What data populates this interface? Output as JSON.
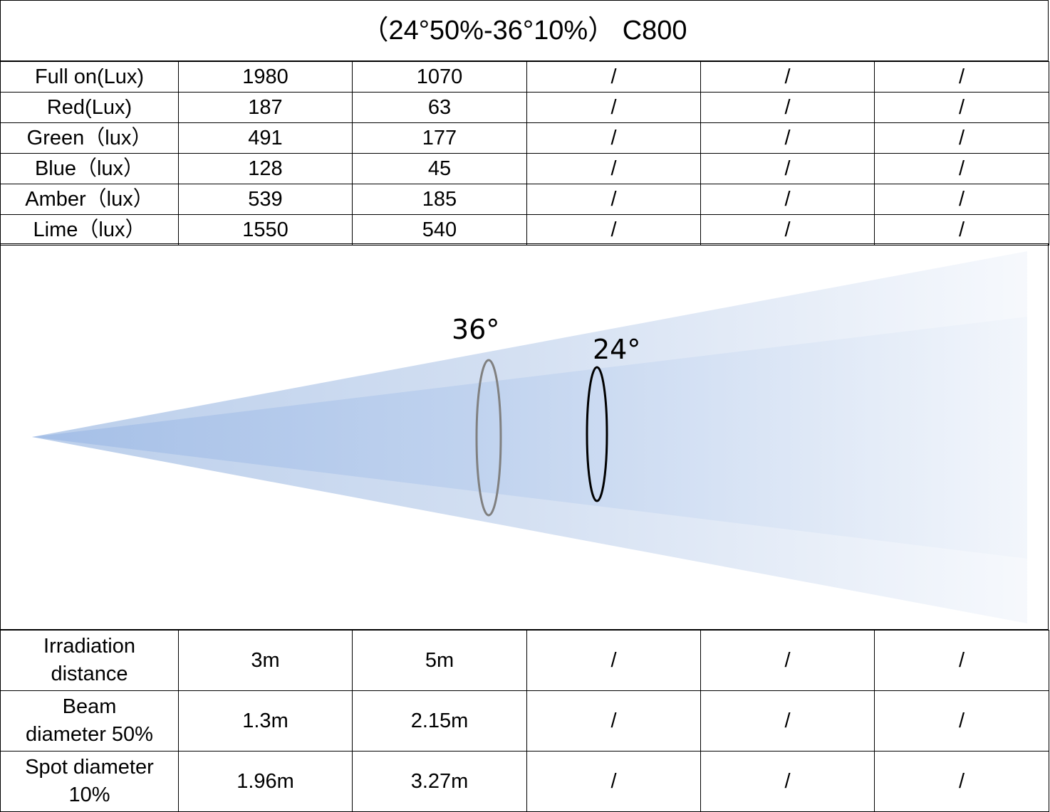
{
  "title": "（24°50%-36°10%） C800",
  "table": {
    "rows": [
      [
        "Full on(Lux)",
        "1980",
        "1070",
        "/",
        "/",
        "/"
      ],
      [
        "Red(Lux)",
        "187",
        "63",
        "/",
        "/",
        "/"
      ],
      [
        "Green（lux）",
        "491",
        "177",
        "/",
        "/",
        "/"
      ],
      [
        "Blue（lux）",
        "128",
        "45",
        "/",
        "/",
        "/"
      ],
      [
        "Amber（lux）",
        "539",
        "185",
        "/",
        "/",
        "/"
      ],
      [
        "Lime（lux）",
        "1550",
        "540",
        "/",
        "/",
        "/"
      ]
    ]
  },
  "diagram": {
    "outer_label": "36°",
    "inner_label": "24°"
  },
  "bottom_table": {
    "rows": [
      [
        [
          "Irradiation",
          "distance"
        ],
        "3m",
        "5m",
        "/",
        "/",
        "/"
      ],
      [
        [
          "Beam",
          "diameter 50%"
        ],
        "1.3m",
        "2.15m",
        "/",
        "/",
        "/"
      ],
      [
        [
          "Spot diameter",
          "10%"
        ],
        "1.96m",
        "3.27m",
        "/",
        "/",
        "/"
      ]
    ]
  }
}
